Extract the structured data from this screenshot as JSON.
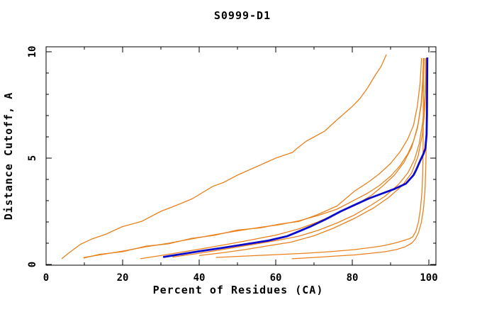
{
  "chart_data": {
    "type": "line",
    "title": "S0999-D1",
    "xlabel": "Percent of Residues (CA)",
    "ylabel": "Distance Cutoff, A",
    "xlim": [
      0,
      102
    ],
    "ylim": [
      0,
      10.25
    ],
    "grid": false,
    "legend": "none",
    "x_ticks_major": [
      0,
      20,
      40,
      60,
      80,
      100
    ],
    "x_tick_labels": [
      "0",
      "20",
      "40",
      "60",
      "80",
      "100"
    ],
    "x_ticks_minor": [
      10,
      30,
      50,
      70,
      90
    ],
    "y_ticks_major": [
      0,
      5,
      10
    ],
    "y_tick_labels": [
      "0",
      "5",
      "10"
    ],
    "y_ticks_minor": [
      1,
      2,
      3,
      4,
      6,
      7,
      8,
      9
    ],
    "colors": {
      "model_line": "#E8821E",
      "highlight_line": "#0A0ACD",
      "axis": "#000000",
      "background": "#FFFFFF"
    },
    "series": [
      {
        "name": "orange-left-steep",
        "color": "#E8821E",
        "width": 1.3,
        "points": [
          [
            4.1,
            0.27
          ],
          [
            6,
            0.55
          ],
          [
            9,
            0.95
          ],
          [
            12,
            1.2
          ],
          [
            15.7,
            1.43
          ],
          [
            19.8,
            1.77
          ],
          [
            25,
            2.03
          ],
          [
            30,
            2.5
          ],
          [
            35,
            2.85
          ],
          [
            38.3,
            3.1
          ],
          [
            43.5,
            3.67
          ],
          [
            46.3,
            3.85
          ],
          [
            50,
            4.2
          ],
          [
            55,
            4.6
          ],
          [
            60,
            5.0
          ],
          [
            64.4,
            5.27
          ],
          [
            65.5,
            5.45
          ],
          [
            68,
            5.8
          ],
          [
            72.8,
            6.27
          ],
          [
            76,
            6.8
          ],
          [
            80,
            7.43
          ],
          [
            82,
            7.8
          ],
          [
            84,
            8.3
          ],
          [
            86,
            8.9
          ],
          [
            87.5,
            9.3
          ],
          [
            88.9,
            9.87
          ]
        ]
      },
      {
        "name": "orange-braid-a",
        "color": "#E8821E",
        "width": 1.3,
        "points": [
          [
            9.8,
            0.33
          ],
          [
            14,
            0.45
          ],
          [
            20,
            0.63
          ],
          [
            26,
            0.83
          ],
          [
            32,
            1.0
          ],
          [
            38,
            1.2
          ],
          [
            44,
            1.4
          ],
          [
            50,
            1.58
          ],
          [
            56,
            1.75
          ],
          [
            61,
            1.87
          ],
          [
            66,
            2.05
          ],
          [
            71,
            2.3
          ],
          [
            76,
            2.6
          ],
          [
            80.6,
            3.03
          ],
          [
            84,
            3.35
          ],
          [
            87,
            3.7
          ],
          [
            90,
            4.15
          ],
          [
            92.5,
            4.65
          ],
          [
            94.5,
            5.2
          ],
          [
            96,
            5.8
          ],
          [
            97.2,
            6.6
          ],
          [
            98,
            7.6
          ],
          [
            98.4,
            8.7
          ],
          [
            98.6,
            9.7
          ]
        ]
      },
      {
        "name": "orange-braid-b",
        "color": "#E8821E",
        "width": 1.3,
        "points": [
          [
            9.8,
            0.3
          ],
          [
            14,
            0.48
          ],
          [
            20,
            0.6
          ],
          [
            26,
            0.86
          ],
          [
            32,
            0.97
          ],
          [
            38,
            1.23
          ],
          [
            44,
            1.37
          ],
          [
            50,
            1.62
          ],
          [
            56,
            1.72
          ],
          [
            61,
            1.9
          ],
          [
            66,
            2.02
          ],
          [
            71,
            2.35
          ],
          [
            76,
            2.75
          ],
          [
            80.6,
            3.45
          ],
          [
            84,
            3.85
          ],
          [
            87,
            4.25
          ],
          [
            90,
            4.75
          ],
          [
            92.5,
            5.3
          ],
          [
            94.5,
            5.9
          ],
          [
            96,
            6.55
          ],
          [
            97,
            7.45
          ],
          [
            97.7,
            8.5
          ],
          [
            98,
            9.4
          ],
          [
            98.1,
            9.7
          ]
        ]
      },
      {
        "name": "orange-mid-1",
        "color": "#E8821E",
        "width": 1.3,
        "points": [
          [
            24.6,
            0.27
          ],
          [
            30,
            0.42
          ],
          [
            36,
            0.6
          ],
          [
            42,
            0.78
          ],
          [
            48,
            0.97
          ],
          [
            54,
            1.17
          ],
          [
            60,
            1.38
          ],
          [
            66,
            1.67
          ],
          [
            71,
            2.0
          ],
          [
            76,
            2.4
          ],
          [
            80.6,
            2.77
          ],
          [
            85,
            3.25
          ],
          [
            88,
            3.7
          ],
          [
            91,
            4.2
          ],
          [
            93.5,
            4.8
          ],
          [
            95.5,
            5.5
          ],
          [
            97,
            6.4
          ],
          [
            98,
            7.5
          ],
          [
            98.6,
            8.8
          ],
          [
            98.8,
            9.7
          ]
        ]
      },
      {
        "name": "orange-mid-2",
        "color": "#E8821E",
        "width": 1.3,
        "points": [
          [
            33,
            0.35
          ],
          [
            39,
            0.5
          ],
          [
            45,
            0.67
          ],
          [
            51,
            0.85
          ],
          [
            57,
            1.03
          ],
          [
            63,
            1.22
          ],
          [
            66,
            1.33
          ],
          [
            71,
            1.6
          ],
          [
            76,
            1.95
          ],
          [
            80.6,
            2.33
          ],
          [
            85,
            2.8
          ],
          [
            88.5,
            3.2
          ],
          [
            92,
            3.75
          ],
          [
            94.5,
            4.3
          ],
          [
            96.3,
            4.95
          ],
          [
            97.5,
            5.7
          ],
          [
            98.4,
            6.7
          ],
          [
            99,
            8.0
          ],
          [
            99.2,
            9.7
          ]
        ]
      },
      {
        "name": "orange-mid-3",
        "color": "#E8821E",
        "width": 1.3,
        "points": [
          [
            40,
            0.42
          ],
          [
            46,
            0.55
          ],
          [
            52,
            0.7
          ],
          [
            58,
            0.88
          ],
          [
            64,
            1.05
          ],
          [
            70,
            1.35
          ],
          [
            75,
            1.7
          ],
          [
            80.6,
            2.17
          ],
          [
            85.5,
            2.65
          ],
          [
            89.5,
            3.15
          ],
          [
            93,
            3.7
          ],
          [
            95.5,
            4.3
          ],
          [
            97.2,
            5.1
          ],
          [
            98.3,
            6.1
          ],
          [
            99,
            7.4
          ],
          [
            99.3,
            9.0
          ],
          [
            99.35,
            9.7
          ]
        ]
      },
      {
        "name": "orange-bottom-1",
        "color": "#E8821E",
        "width": 1.3,
        "points": [
          [
            44.4,
            0.33
          ],
          [
            50,
            0.38
          ],
          [
            56,
            0.43
          ],
          [
            62,
            0.48
          ],
          [
            68,
            0.53
          ],
          [
            74,
            0.6
          ],
          [
            80.6,
            0.7
          ],
          [
            85,
            0.8
          ],
          [
            88,
            0.88
          ],
          [
            91,
            1.0
          ],
          [
            93.5,
            1.13
          ],
          [
            95,
            1.22
          ],
          [
            95.8,
            1.3
          ],
          [
            96.6,
            1.55
          ],
          [
            97.3,
            2.0
          ],
          [
            97.8,
            2.6
          ],
          [
            98.2,
            3.4
          ],
          [
            98.4,
            4.3
          ],
          [
            98.5,
            5.5
          ],
          [
            98.55,
            7.0
          ],
          [
            98.6,
            9.55
          ]
        ]
      },
      {
        "name": "orange-bottom-2",
        "color": "#E8821E",
        "width": 1.3,
        "points": [
          [
            64.2,
            0.27
          ],
          [
            70,
            0.33
          ],
          [
            76,
            0.4
          ],
          [
            80.6,
            0.45
          ],
          [
            85,
            0.53
          ],
          [
            88.5,
            0.6
          ],
          [
            91.5,
            0.7
          ],
          [
            93.8,
            0.83
          ],
          [
            95.5,
            1.0
          ],
          [
            96.5,
            1.2
          ],
          [
            97.3,
            1.5
          ],
          [
            98,
            1.95
          ],
          [
            98.6,
            2.6
          ],
          [
            99,
            3.5
          ],
          [
            99.2,
            4.6
          ],
          [
            99.35,
            6.0
          ],
          [
            99.4,
            7.5
          ],
          [
            99.45,
            9.65
          ]
        ]
      },
      {
        "name": "blue-main",
        "color": "#0A0ACD",
        "width": 2.8,
        "points": [
          [
            30.6,
            0.35
          ],
          [
            34,
            0.45
          ],
          [
            40,
            0.62
          ],
          [
            46,
            0.78
          ],
          [
            52,
            0.95
          ],
          [
            58,
            1.12
          ],
          [
            63,
            1.33
          ],
          [
            65.7,
            1.53
          ],
          [
            69,
            1.78
          ],
          [
            73,
            2.12
          ],
          [
            77,
            2.5
          ],
          [
            80,
            2.75
          ],
          [
            84.3,
            3.1
          ],
          [
            88,
            3.35
          ],
          [
            91,
            3.55
          ],
          [
            94,
            3.8
          ],
          [
            96,
            4.2
          ],
          [
            96.7,
            4.45
          ],
          [
            97.8,
            4.9
          ],
          [
            98.6,
            5.2
          ],
          [
            99.1,
            5.45
          ],
          [
            99.4,
            6.1
          ],
          [
            99.5,
            7.0
          ],
          [
            99.55,
            8.5
          ],
          [
            99.6,
            9.73
          ]
        ]
      }
    ]
  }
}
